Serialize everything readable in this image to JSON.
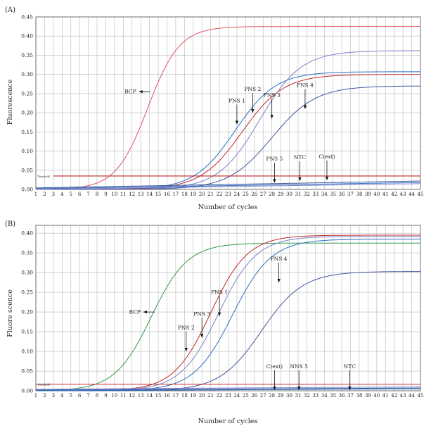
{
  "chart_data": [
    {
      "type": "line",
      "panel_label": "(A)",
      "xlabel": "Number of cycles",
      "ylabel": "Fluorescence",
      "xlim": [
        1,
        45
      ],
      "ylim": [
        0,
        0.45
      ],
      "yticks": [
        "0.00",
        "0.05",
        "0.10",
        "0.15",
        "0.20",
        "0.25",
        "0.30",
        "0.35",
        "0.40",
        "0.45"
      ],
      "grid": true,
      "threshold": {
        "value": 0.035,
        "label": "Threshold",
        "start_cycle": 3,
        "color": "#c0282a"
      },
      "series": [
        {
          "name": "BCP",
          "color": "#e05560",
          "ct": 13.8,
          "plateau": 0.425,
          "k": 0.55
        },
        {
          "name": "PNS 1",
          "color": "#2b6fc4",
          "ct": 23.8,
          "plateau": 0.307,
          "k": 0.43
        },
        {
          "name": "PNS 2",
          "color": "#c0282a",
          "ct": 24.6,
          "plateau": 0.3,
          "k": 0.42
        },
        {
          "name": "PNS 3",
          "color": "#7a80c8",
          "ct": 26.6,
          "plateau": 0.362,
          "k": 0.42
        },
        {
          "name": "PNS 4",
          "color": "#3f579c",
          "ct": 28.0,
          "plateau": 0.27,
          "k": 0.4
        },
        {
          "name": "PNS 5",
          "color": "#3f579c",
          "flat": [
            0.004,
            0.022
          ]
        },
        {
          "name": "NTC",
          "color": "#2b6fc4",
          "flat": [
            0.002,
            0.018
          ]
        },
        {
          "name": "C(ext)",
          "color": "#7a80c8",
          "flat": [
            0.0,
            0.015
          ]
        }
      ],
      "annotations": [
        {
          "text": "BCP",
          "target": [
            12.8,
            0.255
          ],
          "dir": "left"
        },
        {
          "text": "PNS 1",
          "target": [
            24.0,
            0.17
          ],
          "dir": "down"
        },
        {
          "text": "PNS 2",
          "target": [
            25.8,
            0.2
          ],
          "dir": "down"
        },
        {
          "text": "PNS 3",
          "target": [
            28.0,
            0.185
          ],
          "dir": "down"
        },
        {
          "text": "PNS 4",
          "target": [
            31.8,
            0.21
          ],
          "dir": "down"
        },
        {
          "text": "PNS 5",
          "target": [
            28.3,
            0.018
          ],
          "dir": "down"
        },
        {
          "text": "NTC",
          "target": [
            31.2,
            0.022
          ],
          "dir": "down"
        },
        {
          "text": "C(ext)",
          "target": [
            34.3,
            0.024
          ],
          "dir": "down"
        }
      ]
    },
    {
      "type": "line",
      "panel_label": "(B)",
      "xlabel": "Number of cycles",
      "ylabel": "Fluore scence",
      "xlim": [
        1,
        45
      ],
      "ylim": [
        0,
        0.42
      ],
      "yticks": [
        "0.00",
        "0.05",
        "0.10",
        "0.15",
        "0.20",
        "0.25",
        "0.30",
        "0.35",
        "0.40"
      ],
      "grid": true,
      "threshold": {
        "value": 0.017,
        "label": "Threshold",
        "start_cycle": 1,
        "color": "#c0282a"
      },
      "series": [
        {
          "name": "BCP",
          "color": "#2e9a48",
          "ct": 14.2,
          "plateau": 0.375,
          "k": 0.48
        },
        {
          "name": "PNS 2",
          "color": "#c0282a",
          "ct": 21.0,
          "plateau": 0.395,
          "k": 0.47
        },
        {
          "name": "PNS 3",
          "color": "#7a80c8",
          "ct": 21.9,
          "plateau": 0.392,
          "k": 0.46
        },
        {
          "name": "PNS 1",
          "color": "#2b6fc4",
          "ct": 23.5,
          "plateau": 0.385,
          "k": 0.45
        },
        {
          "name": "PNS 4",
          "color": "#3f579c",
          "ct": 26.8,
          "plateau": 0.303,
          "k": 0.42
        },
        {
          "name": "C(ext)",
          "color": "#7a80c8",
          "flat": [
            0.004,
            0.01
          ]
        },
        {
          "name": "NNS 5",
          "color": "#3f579c",
          "flat": [
            0.002,
            0.007
          ]
        },
        {
          "name": "NTC",
          "color": "#2b6fc4",
          "flat": [
            0.0,
            0.005
          ]
        }
      ],
      "annotations": [
        {
          "text": "BCP",
          "target": [
            13.3,
            0.2
          ],
          "dir": "left"
        },
        {
          "text": "PNS 2",
          "target": [
            18.2,
            0.1
          ],
          "dir": "down"
        },
        {
          "text": "PNS 3",
          "target": [
            20.0,
            0.135
          ],
          "dir": "down"
        },
        {
          "text": "PNS 1",
          "target": [
            22.0,
            0.19
          ],
          "dir": "down"
        },
        {
          "text": "PNS 4",
          "target": [
            28.8,
            0.275
          ],
          "dir": "down"
        },
        {
          "text": "C(ext)",
          "target": [
            28.3,
            0.002
          ],
          "dir": "down"
        },
        {
          "text": "NNS 5",
          "target": [
            31.1,
            0.002
          ],
          "dir": "down"
        },
        {
          "text": "NTC",
          "target": [
            36.9,
            0.002
          ],
          "dir": "down"
        }
      ]
    }
  ]
}
